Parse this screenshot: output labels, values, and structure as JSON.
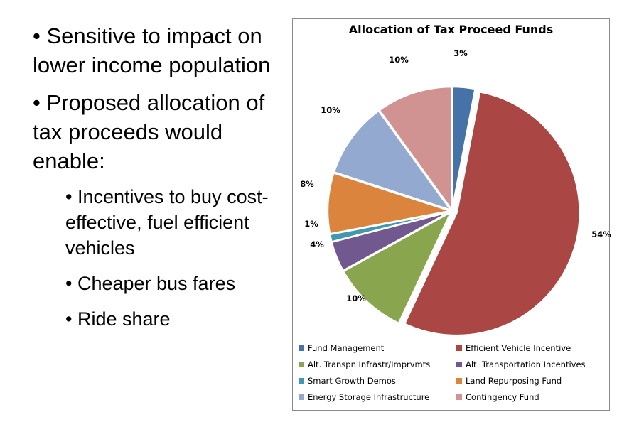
{
  "bullets": [
    {
      "level": 1,
      "text": "• Sensitive to impact on lower income population"
    },
    {
      "level": 1,
      "text": "• Proposed allocation of tax proceeds would enable:"
    },
    {
      "level": 2,
      "text": "• Incentives to buy cost-effective, fuel efficient vehicles"
    },
    {
      "level": 2,
      "text": "• Cheaper bus fares"
    },
    {
      "level": 2,
      "text": "• Ride share"
    }
  ],
  "chart_data": {
    "type": "pie",
    "title": "Allocation of Tax Proceed Funds",
    "legend_position": "bottom",
    "slices": [
      {
        "label": "Fund Management",
        "value": 3,
        "display": "3%",
        "color": "#4572a7"
      },
      {
        "label": "Efficient Vehicle Incentive",
        "value": 54,
        "display": "54%",
        "color": "#aa4643"
      },
      {
        "label": "Alt. Transpn Infrastr/Imprvmts",
        "value": 10,
        "display": "10%",
        "color": "#89a54e"
      },
      {
        "label": "Alt. Transportation Incentives",
        "value": 4,
        "display": "4%",
        "color": "#71588f"
      },
      {
        "label": "Smart Growth Demos",
        "value": 1,
        "display": "1%",
        "color": "#4198af"
      },
      {
        "label": "Land Repurposing Fund",
        "value": 8,
        "display": "8%",
        "color": "#db843d"
      },
      {
        "label": "Energy Storage Infrastructure",
        "value": 10,
        "display": "10%",
        "color": "#93a9cf"
      },
      {
        "label": "Contingency Fund",
        "value": 10,
        "display": "10%",
        "color": "#d19392"
      }
    ]
  }
}
